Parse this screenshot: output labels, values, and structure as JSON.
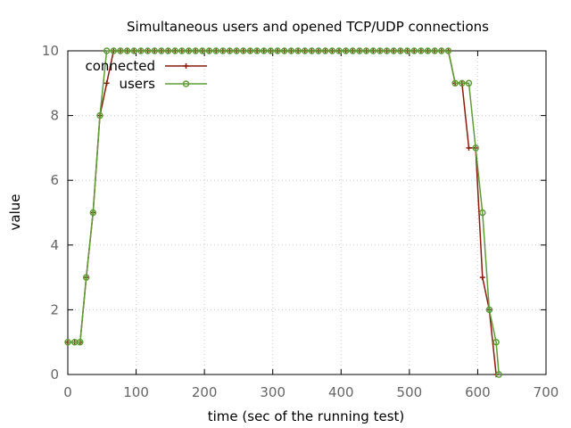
{
  "chart_data": {
    "type": "line",
    "title": "Simultaneous users and opened TCP/UDP connections",
    "xlabel": "time (sec of the running test)",
    "ylabel": "value",
    "xlim": [
      0,
      700
    ],
    "ylim": [
      0,
      10
    ],
    "xticks": [
      0,
      100,
      200,
      300,
      400,
      500,
      600,
      700
    ],
    "yticks": [
      0,
      2,
      4,
      6,
      8,
      10
    ],
    "grid": true,
    "legend_position": "top-left",
    "series": [
      {
        "name": "connected",
        "color": "#8b1a0e",
        "marker": "plus",
        "x": [
          0,
          10,
          18,
          27,
          37,
          47,
          57,
          67,
          77,
          87,
          97,
          107,
          117,
          127,
          137,
          147,
          157,
          167,
          177,
          187,
          197,
          207,
          217,
          227,
          237,
          247,
          257,
          267,
          277,
          287,
          297,
          307,
          317,
          327,
          337,
          347,
          357,
          367,
          377,
          387,
          397,
          407,
          417,
          427,
          437,
          447,
          457,
          467,
          477,
          487,
          497,
          507,
          517,
          527,
          537,
          547,
          557,
          567,
          577,
          587,
          597,
          607,
          617,
          627
        ],
        "y": [
          1,
          1,
          1,
          3,
          5,
          8,
          9,
          10,
          10,
          10,
          10,
          10,
          10,
          10,
          10,
          10,
          10,
          10,
          10,
          10,
          10,
          10,
          10,
          10,
          10,
          10,
          10,
          10,
          10,
          10,
          10,
          10,
          10,
          10,
          10,
          10,
          10,
          10,
          10,
          10,
          10,
          10,
          10,
          10,
          10,
          10,
          10,
          10,
          10,
          10,
          10,
          10,
          10,
          10,
          10,
          10,
          10,
          9,
          9,
          7,
          7,
          3,
          2,
          0
        ]
      },
      {
        "name": "users",
        "color": "#5e9c36",
        "marker": "circle",
        "x": [
          0,
          10,
          18,
          27,
          37,
          47,
          57,
          67,
          77,
          87,
          97,
          107,
          117,
          127,
          137,
          147,
          157,
          167,
          177,
          187,
          197,
          207,
          217,
          227,
          237,
          247,
          257,
          267,
          277,
          287,
          297,
          307,
          317,
          327,
          337,
          347,
          357,
          367,
          377,
          387,
          397,
          407,
          417,
          427,
          437,
          447,
          457,
          467,
          477,
          487,
          497,
          507,
          517,
          527,
          537,
          547,
          557,
          567,
          577,
          587,
          597,
          607,
          617,
          627,
          631
        ],
        "y": [
          1,
          1,
          1,
          3,
          5,
          8,
          10,
          10,
          10,
          10,
          10,
          10,
          10,
          10,
          10,
          10,
          10,
          10,
          10,
          10,
          10,
          10,
          10,
          10,
          10,
          10,
          10,
          10,
          10,
          10,
          10,
          10,
          10,
          10,
          10,
          10,
          10,
          10,
          10,
          10,
          10,
          10,
          10,
          10,
          10,
          10,
          10,
          10,
          10,
          10,
          10,
          10,
          10,
          10,
          10,
          10,
          10,
          9,
          9,
          9,
          7,
          5,
          2,
          1,
          0
        ]
      }
    ]
  }
}
